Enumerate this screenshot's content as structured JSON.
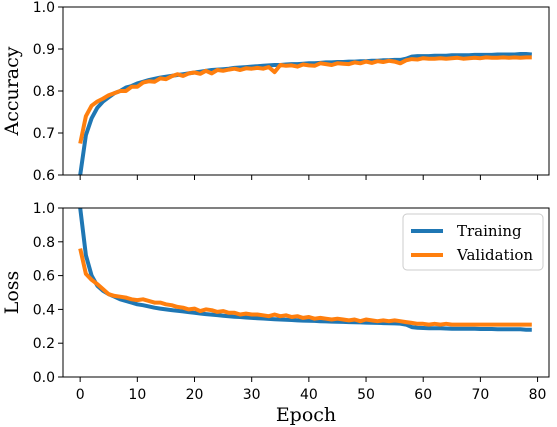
{
  "chart_data": [
    {
      "type": "line",
      "title": "",
      "xlabel": "",
      "ylabel": "Accuracy",
      "xlim": [
        -3,
        82
      ],
      "ylim": [
        0.6,
        1.0
      ],
      "xticks": [
        0,
        10,
        20,
        30,
        40,
        50,
        60,
        70,
        80
      ],
      "yticks": [
        "0.6",
        "0.7",
        "0.8",
        "0.9",
        "1.0"
      ],
      "series": [
        {
          "color": "#1f77b4",
          "x": [
            0,
            1,
            2,
            3,
            4,
            5,
            6,
            7,
            8,
            9,
            10,
            11,
            12,
            13,
            14,
            15,
            16,
            17,
            18,
            19,
            20,
            21,
            22,
            23,
            24,
            25,
            26,
            27,
            28,
            29,
            30,
            31,
            32,
            33,
            34,
            35,
            36,
            37,
            38,
            39,
            40,
            41,
            42,
            43,
            44,
            45,
            46,
            47,
            48,
            49,
            50,
            51,
            52,
            53,
            54,
            55,
            56,
            57,
            58,
            59,
            60,
            61,
            62,
            63,
            64,
            65,
            66,
            67,
            68,
            69,
            70,
            71,
            72,
            73,
            74,
            75,
            76,
            77,
            78,
            79
          ],
          "y": [
            0.6,
            0.695,
            0.735,
            0.76,
            0.775,
            0.785,
            0.795,
            0.8,
            0.808,
            0.812,
            0.818,
            0.822,
            0.826,
            0.829,
            0.832,
            0.834,
            0.836,
            0.838,
            0.84,
            0.842,
            0.844,
            0.846,
            0.848,
            0.85,
            0.851,
            0.852,
            0.853,
            0.855,
            0.856,
            0.857,
            0.858,
            0.859,
            0.86,
            0.861,
            0.862,
            0.862,
            0.863,
            0.864,
            0.864,
            0.865,
            0.866,
            0.866,
            0.867,
            0.868,
            0.868,
            0.869,
            0.869,
            0.87,
            0.87,
            0.871,
            0.871,
            0.872,
            0.872,
            0.873,
            0.873,
            0.874,
            0.874,
            0.877,
            0.882,
            0.883,
            0.883,
            0.883,
            0.884,
            0.884,
            0.884,
            0.885,
            0.885,
            0.885,
            0.885,
            0.886,
            0.886,
            0.886,
            0.886,
            0.887,
            0.887,
            0.887,
            0.887,
            0.888,
            0.888,
            0.887
          ]
        },
        {
          "color": "#ff7f0e",
          "x": [
            0,
            1,
            2,
            3,
            4,
            5,
            6,
            7,
            8,
            9,
            10,
            11,
            12,
            13,
            14,
            15,
            16,
            17,
            18,
            19,
            20,
            21,
            22,
            23,
            24,
            25,
            26,
            27,
            28,
            29,
            30,
            31,
            32,
            33,
            34,
            35,
            36,
            37,
            38,
            39,
            40,
            41,
            42,
            43,
            44,
            45,
            46,
            47,
            48,
            49,
            50,
            51,
            52,
            53,
            54,
            55,
            56,
            57,
            58,
            59,
            60,
            61,
            62,
            63,
            64,
            65,
            66,
            67,
            68,
            69,
            70,
            71,
            72,
            73,
            74,
            75,
            76,
            77,
            78,
            79
          ],
          "y": [
            0.675,
            0.74,
            0.765,
            0.775,
            0.782,
            0.79,
            0.795,
            0.8,
            0.8,
            0.81,
            0.81,
            0.82,
            0.823,
            0.822,
            0.83,
            0.828,
            0.835,
            0.84,
            0.836,
            0.842,
            0.844,
            0.841,
            0.848,
            0.842,
            0.85,
            0.848,
            0.851,
            0.853,
            0.85,
            0.854,
            0.853,
            0.855,
            0.853,
            0.857,
            0.845,
            0.862,
            0.86,
            0.861,
            0.858,
            0.863,
            0.861,
            0.86,
            0.866,
            0.864,
            0.862,
            0.866,
            0.865,
            0.864,
            0.868,
            0.866,
            0.87,
            0.867,
            0.871,
            0.869,
            0.872,
            0.87,
            0.866,
            0.873,
            0.876,
            0.875,
            0.878,
            0.877,
            0.877,
            0.878,
            0.877,
            0.878,
            0.879,
            0.877,
            0.878,
            0.879,
            0.878,
            0.88,
            0.879,
            0.879,
            0.88,
            0.879,
            0.88,
            0.879,
            0.88,
            0.88
          ]
        }
      ]
    },
    {
      "type": "line",
      "title": "",
      "xlabel": "Epoch",
      "ylabel": "Loss",
      "xlim": [
        -3,
        82
      ],
      "ylim": [
        0.0,
        1.0
      ],
      "xticks": [
        0,
        10,
        20,
        30,
        40,
        50,
        60,
        70,
        80
      ],
      "yticks": [
        "0.0",
        "0.2",
        "0.4",
        "0.6",
        "0.8",
        "1.0"
      ],
      "legend": "upper-right",
      "series": [
        {
          "name": "Training",
          "color": "#1f77b4",
          "x": [
            0,
            1,
            2,
            3,
            4,
            5,
            6,
            7,
            8,
            9,
            10,
            11,
            12,
            13,
            14,
            15,
            16,
            17,
            18,
            19,
            20,
            21,
            22,
            23,
            24,
            25,
            26,
            27,
            28,
            29,
            30,
            31,
            32,
            33,
            34,
            35,
            36,
            37,
            38,
            39,
            40,
            41,
            42,
            43,
            44,
            45,
            46,
            47,
            48,
            49,
            50,
            51,
            52,
            53,
            54,
            55,
            56,
            57,
            58,
            59,
            60,
            61,
            62,
            63,
            64,
            65,
            66,
            67,
            68,
            69,
            70,
            71,
            72,
            73,
            74,
            75,
            76,
            77,
            78,
            79
          ],
          "y": [
            1.0,
            0.72,
            0.6,
            0.54,
            0.51,
            0.49,
            0.475,
            0.46,
            0.45,
            0.44,
            0.43,
            0.425,
            0.418,
            0.41,
            0.405,
            0.4,
            0.396,
            0.392,
            0.388,
            0.384,
            0.38,
            0.376,
            0.372,
            0.369,
            0.366,
            0.363,
            0.36,
            0.357,
            0.355,
            0.352,
            0.35,
            0.348,
            0.346,
            0.344,
            0.342,
            0.34,
            0.339,
            0.337,
            0.335,
            0.334,
            0.333,
            0.332,
            0.33,
            0.329,
            0.328,
            0.327,
            0.326,
            0.325,
            0.324,
            0.323,
            0.322,
            0.321,
            0.32,
            0.319,
            0.318,
            0.317,
            0.316,
            0.31,
            0.295,
            0.292,
            0.29,
            0.289,
            0.288,
            0.288,
            0.287,
            0.286,
            0.286,
            0.285,
            0.285,
            0.285,
            0.284,
            0.284,
            0.284,
            0.283,
            0.283,
            0.283,
            0.282,
            0.282,
            0.28,
            0.28
          ]
        },
        {
          "name": "Validation",
          "color": "#ff7f0e",
          "x": [
            0,
            1,
            2,
            3,
            4,
            5,
            6,
            7,
            8,
            9,
            10,
            11,
            12,
            13,
            14,
            15,
            16,
            17,
            18,
            19,
            20,
            21,
            22,
            23,
            24,
            25,
            26,
            27,
            28,
            29,
            30,
            31,
            32,
            33,
            34,
            35,
            36,
            37,
            38,
            39,
            40,
            41,
            42,
            43,
            44,
            45,
            46,
            47,
            48,
            49,
            50,
            51,
            52,
            53,
            54,
            55,
            56,
            57,
            58,
            59,
            60,
            61,
            62,
            63,
            64,
            65,
            66,
            67,
            68,
            69,
            70,
            71,
            72,
            73,
            74,
            75,
            76,
            77,
            78,
            79
          ],
          "y": [
            0.76,
            0.61,
            0.575,
            0.55,
            0.52,
            0.49,
            0.48,
            0.475,
            0.47,
            0.46,
            0.455,
            0.46,
            0.45,
            0.44,
            0.44,
            0.43,
            0.425,
            0.415,
            0.41,
            0.4,
            0.405,
            0.39,
            0.4,
            0.395,
            0.385,
            0.39,
            0.38,
            0.38,
            0.37,
            0.375,
            0.37,
            0.37,
            0.365,
            0.36,
            0.37,
            0.36,
            0.365,
            0.355,
            0.36,
            0.35,
            0.355,
            0.345,
            0.35,
            0.345,
            0.34,
            0.345,
            0.34,
            0.335,
            0.34,
            0.33,
            0.34,
            0.335,
            0.33,
            0.335,
            0.33,
            0.335,
            0.33,
            0.325,
            0.32,
            0.315,
            0.315,
            0.31,
            0.315,
            0.31,
            0.315,
            0.31,
            0.31,
            0.31,
            0.31,
            0.31,
            0.31,
            0.31,
            0.31,
            0.31,
            0.31,
            0.31,
            0.31,
            0.31,
            0.31,
            0.31
          ]
        }
      ]
    }
  ]
}
